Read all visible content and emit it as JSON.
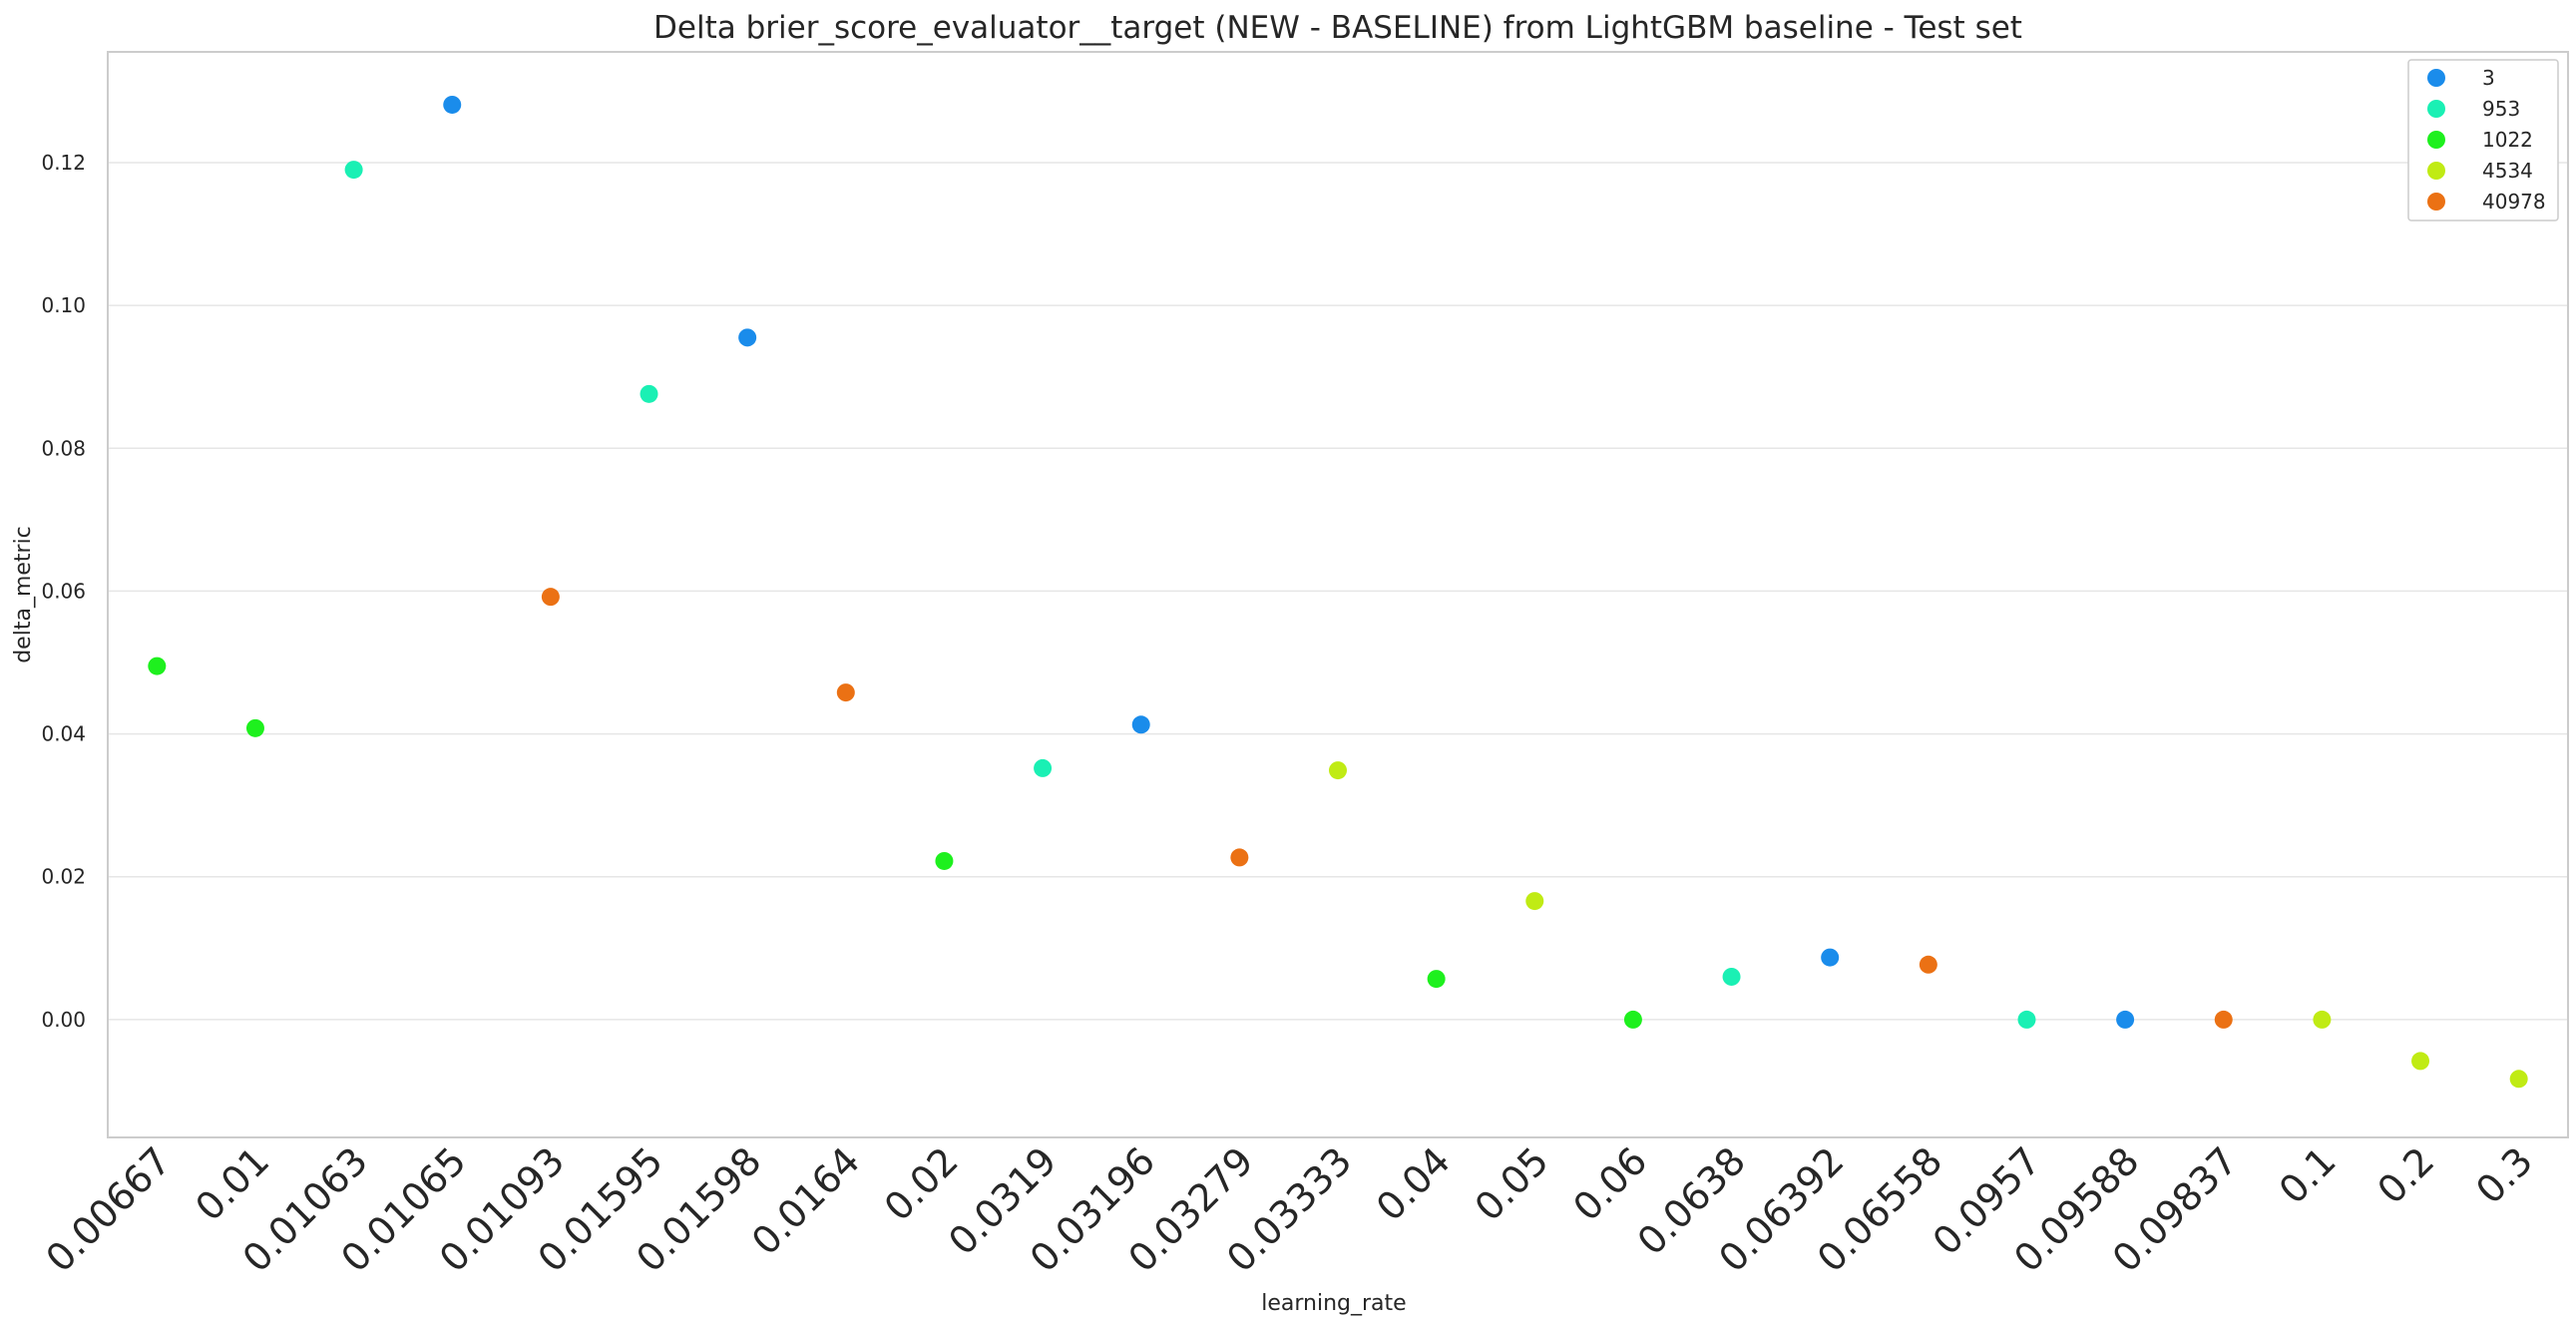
{
  "chart_data": {
    "type": "scatter",
    "title": "Delta brier_score_evaluator__target (NEW - BASELINE) from LightGBM baseline - Test set",
    "xlabel": "learning_rate",
    "ylabel": "delta_metric",
    "categories": [
      "0.00667",
      "0.01",
      "0.01063",
      "0.01065",
      "0.01093",
      "0.01595",
      "0.01598",
      "0.0164",
      "0.02",
      "0.0319",
      "0.03196",
      "0.03279",
      "0.03333",
      "0.04",
      "0.05",
      "0.06",
      "0.0638",
      "0.06392",
      "0.06558",
      "0.0957",
      "0.09588",
      "0.09837",
      "0.1",
      "0.2",
      "0.3"
    ],
    "yticks": [
      "0.00",
      "0.02",
      "0.04",
      "0.06",
      "0.08",
      "0.10",
      "0.12"
    ],
    "ylim": [
      -0.0165,
      0.1355
    ],
    "grid": "horizontal",
    "legend_position": "top-right",
    "series": [
      {
        "name": "3",
        "color": "#1a8ceb",
        "points": [
          [
            "0.01065",
            0.1281
          ],
          [
            "0.01598",
            0.0955
          ],
          [
            "0.03196",
            0.0413
          ],
          [
            "0.06392",
            0.0087
          ],
          [
            "0.09588",
            0.0
          ]
        ]
      },
      {
        "name": "953",
        "color": "#1af0b4",
        "points": [
          [
            "0.01063",
            0.119
          ],
          [
            "0.01595",
            0.0876
          ],
          [
            "0.0319",
            0.0352
          ],
          [
            "0.0638",
            0.006
          ],
          [
            "0.0957",
            0.0
          ]
        ]
      },
      {
        "name": "1022",
        "color": "#1ef01e",
        "points": [
          [
            "0.00667",
            0.0495
          ],
          [
            "0.01",
            0.0408
          ],
          [
            "0.02",
            0.0222
          ],
          [
            "0.04",
            0.0057
          ],
          [
            "0.06",
            0.0
          ]
        ]
      },
      {
        "name": "4534",
        "color": "#c0eb14",
        "points": [
          [
            "0.03333",
            0.0349
          ],
          [
            "0.05",
            0.0166
          ],
          [
            "0.1",
            0.0
          ],
          [
            "0.2",
            -0.0058
          ],
          [
            "0.3",
            -0.0083
          ]
        ]
      },
      {
        "name": "40978",
        "color": "#eb7114",
        "points": [
          [
            "0.01093",
            0.0592
          ],
          [
            "0.0164",
            0.0458
          ],
          [
            "0.03279",
            0.0227
          ],
          [
            "0.06558",
            0.0077
          ],
          [
            "0.09837",
            0.0
          ]
        ]
      }
    ]
  }
}
